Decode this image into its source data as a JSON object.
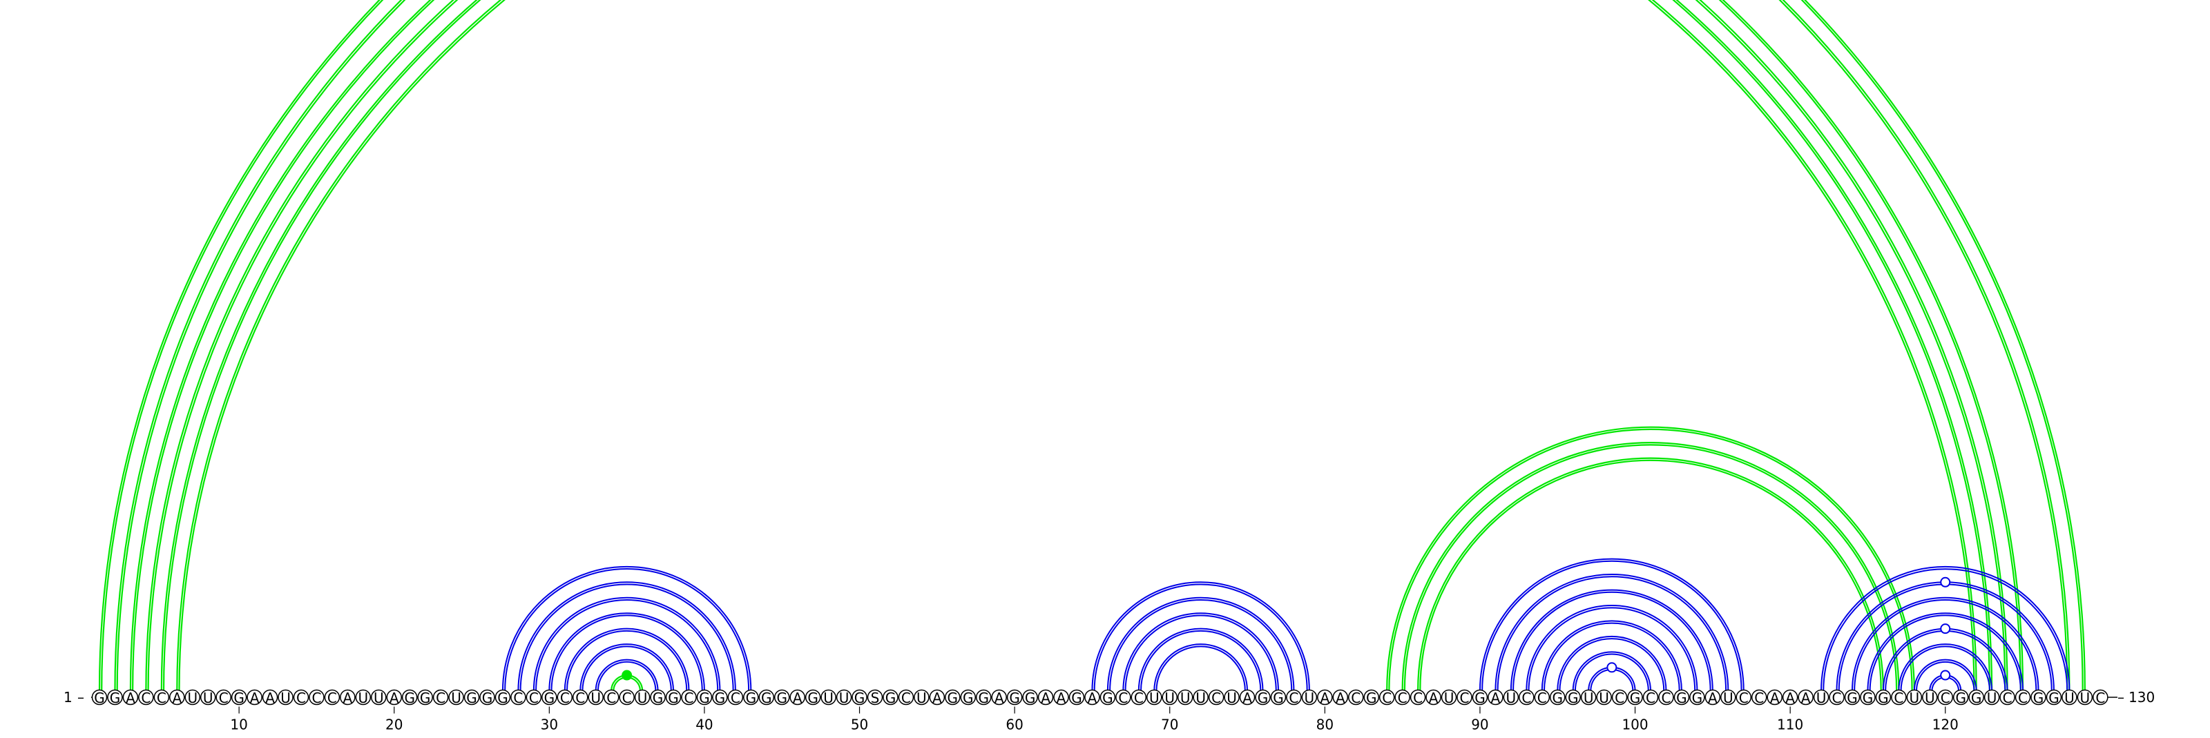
{
  "diagram": {
    "start_label": "1",
    "end_label": "130",
    "sequence": "GGACCAUUCGAAUCCCAUUAGGCUGGGCCGCCUCCUGGCGGCGGGAGUUGSGCUAGGGAGGAAGAGCCUUUUCUAGGCUAACGCCCAUCGAUCCGGUUCGCCGGAUCCAAAUCGGGCUUCGGUCCGGUUC",
    "tick_labels": [
      "10",
      "20",
      "30",
      "40",
      "50",
      "60",
      "70",
      "80",
      "90",
      "100",
      "110",
      "120"
    ],
    "colors": {
      "outer_pairs": "#00e600",
      "inner_pairs": "#0000e6",
      "background": "#ffffff"
    },
    "pairs": [
      {
        "i": 1,
        "j": 129,
        "type": "outer"
      },
      {
        "i": 2,
        "j": 128,
        "type": "outer"
      },
      {
        "i": 3,
        "j": 125,
        "type": "outer"
      },
      {
        "i": 4,
        "j": 124,
        "type": "outer"
      },
      {
        "i": 5,
        "j": 123,
        "type": "outer"
      },
      {
        "i": 6,
        "j": 122,
        "type": "outer"
      },
      {
        "i": 84,
        "j": 118,
        "type": "outer"
      },
      {
        "i": 85,
        "j": 117,
        "type": "outer"
      },
      {
        "i": 86,
        "j": 116,
        "type": "outer"
      },
      {
        "i": 34,
        "j": 36,
        "type": "outer"
      },
      {
        "i": 27,
        "j": 43,
        "type": "inner"
      },
      {
        "i": 28,
        "j": 42,
        "type": "inner"
      },
      {
        "i": 29,
        "j": 41,
        "type": "inner"
      },
      {
        "i": 30,
        "j": 40,
        "type": "inner"
      },
      {
        "i": 31,
        "j": 39,
        "type": "inner"
      },
      {
        "i": 32,
        "j": 38,
        "type": "inner"
      },
      {
        "i": 33,
        "j": 37,
        "type": "inner"
      },
      {
        "i": 65,
        "j": 79,
        "type": "inner"
      },
      {
        "i": 66,
        "j": 78,
        "type": "inner"
      },
      {
        "i": 67,
        "j": 77,
        "type": "inner"
      },
      {
        "i": 68,
        "j": 76,
        "type": "inner"
      },
      {
        "i": 69,
        "j": 75,
        "type": "inner"
      },
      {
        "i": 90,
        "j": 107,
        "type": "inner"
      },
      {
        "i": 91,
        "j": 106,
        "type": "inner"
      },
      {
        "i": 92,
        "j": 105,
        "type": "inner"
      },
      {
        "i": 93,
        "j": 104,
        "type": "inner"
      },
      {
        "i": 94,
        "j": 103,
        "type": "inner"
      },
      {
        "i": 95,
        "j": 102,
        "type": "inner"
      },
      {
        "i": 96,
        "j": 101,
        "type": "inner"
      },
      {
        "i": 97,
        "j": 100,
        "type": "inner"
      },
      {
        "i": 112,
        "j": 128,
        "type": "inner"
      },
      {
        "i": 113,
        "j": 127,
        "type": "inner"
      },
      {
        "i": 114,
        "j": 126,
        "type": "inner"
      },
      {
        "i": 115,
        "j": 125,
        "type": "inner"
      },
      {
        "i": 116,
        "j": 124,
        "type": "inner"
      },
      {
        "i": 117,
        "j": 123,
        "type": "inner"
      },
      {
        "i": 118,
        "j": 122,
        "type": "inner"
      },
      {
        "i": 119,
        "j": 121,
        "type": "inner"
      }
    ],
    "markers": [
      {
        "pos": 65.5,
        "arc": "1-129",
        "filled": false,
        "color": "outer_pairs"
      },
      {
        "pos": 35,
        "arc": "34-36",
        "filled": true,
        "color": "outer_pairs"
      },
      {
        "pos": 98.5,
        "arc": "97-100",
        "filled": false,
        "color": "inner_pairs"
      },
      {
        "pos": 120,
        "arc": "113-127",
        "filled": false,
        "color": "inner_pairs"
      },
      {
        "pos": 120,
        "arc": "116-124",
        "filled": false,
        "color": "inner_pairs"
      },
      {
        "pos": 120,
        "arc": "119-121",
        "filled": false,
        "color": "inner_pairs"
      }
    ]
  }
}
